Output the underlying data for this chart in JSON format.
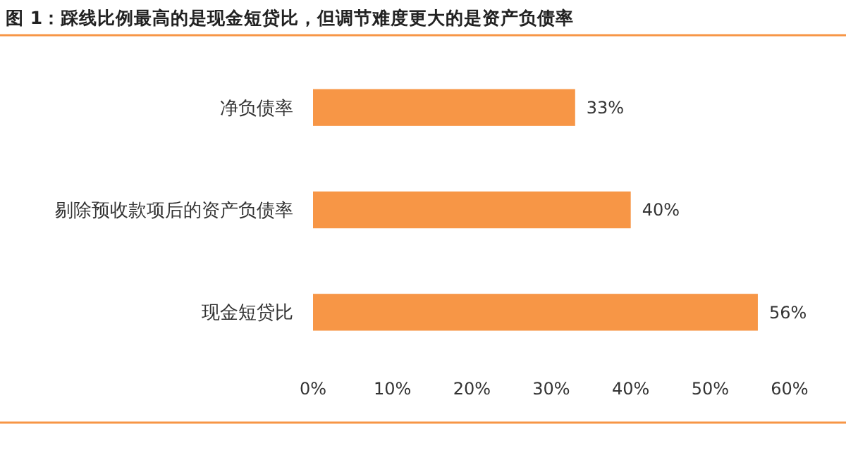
{
  "chart_data": {
    "type": "bar",
    "orientation": "horizontal",
    "title": "图 1：踩线比例最高的是现金短贷比，但调节难度更大的是资产负债率",
    "categories": [
      "净负债率",
      "剔除预收款项后的资产负债率",
      "现金短贷比"
    ],
    "values": [
      33,
      40,
      56
    ],
    "color": "#f79646",
    "value_labels": [
      "33%",
      "40%",
      "56%"
    ],
    "xlim": [
      0,
      60
    ],
    "xticks": [
      {
        "value": 0,
        "label": "0%"
      },
      {
        "value": 10,
        "label": "10%"
      },
      {
        "value": 20,
        "label": "20%"
      },
      {
        "value": 30,
        "label": "30%"
      },
      {
        "value": 40,
        "label": "40%"
      },
      {
        "value": 50,
        "label": "50%"
      },
      {
        "value": 60,
        "label": "60%"
      }
    ],
    "grid": false
  }
}
